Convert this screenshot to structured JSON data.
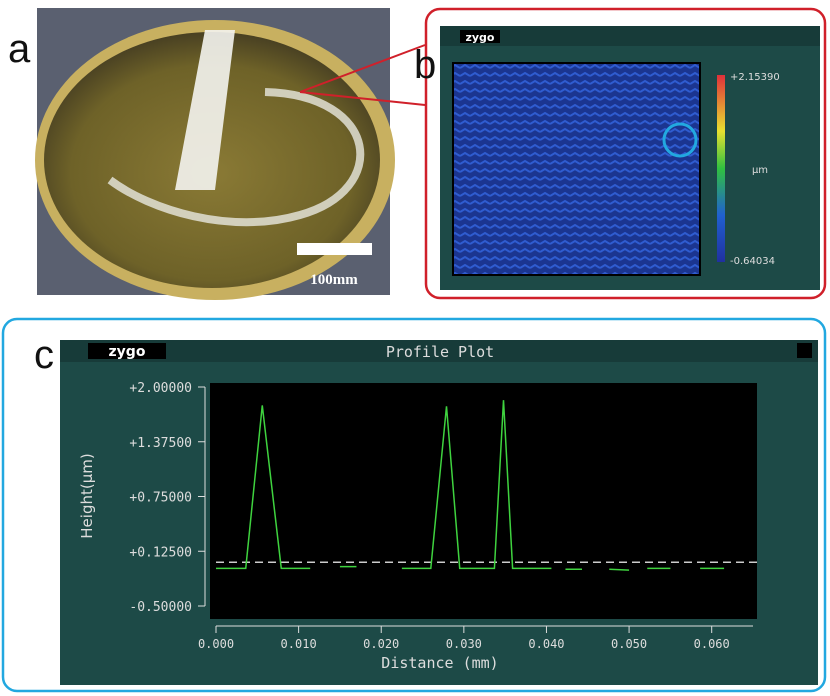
{
  "panels": {
    "a": {
      "label": "a",
      "scale_bar": "100mm"
    },
    "b": {
      "label": "b",
      "app": "zygo",
      "colorbar": {
        "max": "+2.15390",
        "unit": "µm",
        "min": "-0.64034"
      }
    },
    "c": {
      "label": "c",
      "app": "zygo"
    }
  },
  "chart_data": {
    "type": "line",
    "title": "Profile Plot",
    "x_label": "Distance (mm)",
    "y_label": "Height(µm)",
    "x": [
      0.0,
      0.0036,
      0.0056,
      0.0079,
      0.0114,
      null,
      0.015,
      0.017,
      null,
      0.0225,
      0.026,
      0.0279,
      0.0295,
      0.0337,
      0.0348,
      0.0359,
      0.0406,
      null,
      0.0423,
      0.0443,
      null,
      0.0476,
      0.05,
      null,
      0.0522,
      0.055,
      null,
      0.0586,
      0.0615
    ],
    "series": [
      {
        "color": "#3fd33f",
        "values": [
          -0.07,
          -0.07,
          1.79,
          -0.07,
          -0.07,
          null,
          -0.05,
          -0.05,
          null,
          -0.07,
          -0.07,
          1.78,
          -0.07,
          -0.07,
          1.85,
          -0.07,
          -0.07,
          null,
          -0.08,
          -0.08,
          null,
          -0.08,
          -0.09,
          null,
          -0.07,
          -0.07,
          null,
          -0.07,
          -0.07
        ]
      }
    ],
    "reference_line": 0.0,
    "xlim": [
      0,
      0.065
    ],
    "ylim": [
      -0.5,
      2.0
    ],
    "xticks": [
      {
        "value": 0,
        "label": "0.000"
      },
      {
        "value": 0.01,
        "label": "0.010"
      },
      {
        "value": 0.02,
        "label": "0.020"
      },
      {
        "value": 0.03,
        "label": "0.030"
      },
      {
        "value": 0.04,
        "label": "0.040"
      },
      {
        "value": 0.05,
        "label": "0.050"
      },
      {
        "value": 0.06,
        "label": "0.060"
      }
    ],
    "yticks": [
      {
        "value": -0.5,
        "label": "-0.50000"
      },
      {
        "value": 0.125,
        "label": "+0.12500"
      },
      {
        "value": 0.75,
        "label": "+0.75000"
      },
      {
        "value": 1.375,
        "label": "+1.37500"
      },
      {
        "value": 2.0,
        "label": "+2.00000"
      }
    ]
  }
}
